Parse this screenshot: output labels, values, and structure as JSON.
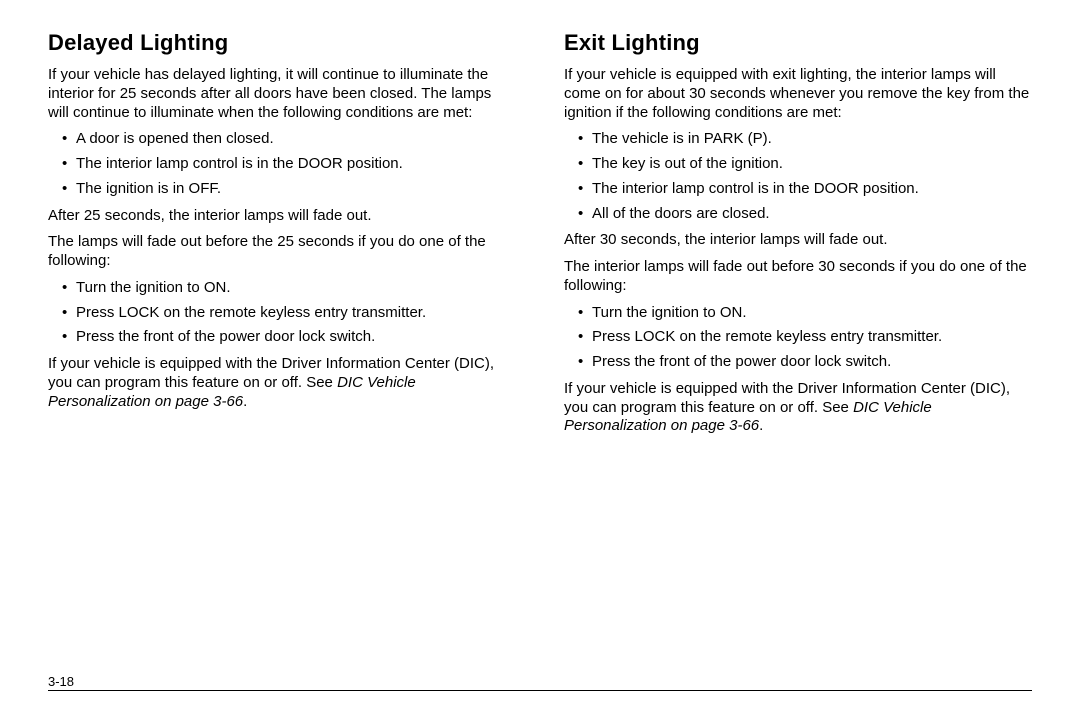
{
  "page": {
    "number": "3-18"
  },
  "left": {
    "heading": "Delayed Lighting",
    "intro": "If your vehicle has delayed lighting, it will continue to illuminate the interior for 25 seconds after all doors have been closed. The lamps will continue to illuminate when the following conditions are met:",
    "conditions": [
      "A door is opened then closed.",
      "The interior lamp control is in the DOOR position.",
      "The ignition is in OFF."
    ],
    "after1": "After 25 seconds, the interior lamps will fade out.",
    "after2": "The lamps will fade out before the 25 seconds if you do one of the following:",
    "actions": [
      "Turn the ignition to ON.",
      "Press LOCK on the remote keyless entry transmitter.",
      "Press the front of the power door lock switch."
    ],
    "dic_prefix": "If your vehicle is equipped with the Driver Information Center (DIC), you can program this feature on or off. See ",
    "dic_xref": "DIC Vehicle Personalization on page 3-66",
    "dic_suffix": "."
  },
  "right": {
    "heading": "Exit Lighting",
    "intro": "If your vehicle is equipped with exit lighting, the interior lamps will come on for about 30 seconds whenever you remove the key from the ignition if the following conditions are met:",
    "conditions": [
      "The vehicle is in PARK (P).",
      "The key is out of the ignition.",
      "The interior lamp control is in the DOOR position.",
      "All of the doors are closed."
    ],
    "after1": "After 30 seconds, the interior lamps will fade out.",
    "after2": "The interior lamps will fade out before 30 seconds if you do one of the following:",
    "actions": [
      "Turn the ignition to ON.",
      "Press LOCK on the remote keyless entry transmitter.",
      "Press the front of the power door lock switch."
    ],
    "dic_prefix": "If your vehicle is equipped with the Driver Information Center (DIC), you can program this feature on or off. See ",
    "dic_xref": "DIC Vehicle Personalization on page 3-66",
    "dic_suffix": "."
  }
}
